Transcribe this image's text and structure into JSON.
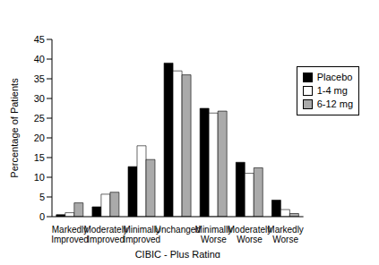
{
  "chart_data": {
    "type": "bar",
    "x_label": "CIBIC - Plus Rating",
    "y_label": "Percentage of Patients",
    "categories": [
      "Markedly Improved",
      "Moderately Improved",
      "Minimally Improved",
      "Unchanged",
      "Minimally Worse",
      "Moderately Worse",
      "Markedly Worse"
    ],
    "series": [
      {
        "name": "Placebo",
        "color": "#000000",
        "values": [
          0.5,
          2.5,
          12.7,
          39,
          27.5,
          13.8,
          4.2
        ]
      },
      {
        "name": "1-4 mg",
        "color": "#ffffff",
        "values": [
          1,
          5.7,
          18,
          37,
          26.3,
          11,
          1.8
        ]
      },
      {
        "name": "6-12 mg",
        "color": "#aaaaaa",
        "values": [
          3.5,
          6.2,
          14.5,
          36,
          26.8,
          12.4,
          0.8
        ]
      }
    ],
    "ylim": [
      0,
      45
    ],
    "yticks": [
      0,
      5,
      10,
      15,
      20,
      25,
      30,
      35,
      40,
      45
    ],
    "grid": false,
    "legend": "upper right"
  }
}
